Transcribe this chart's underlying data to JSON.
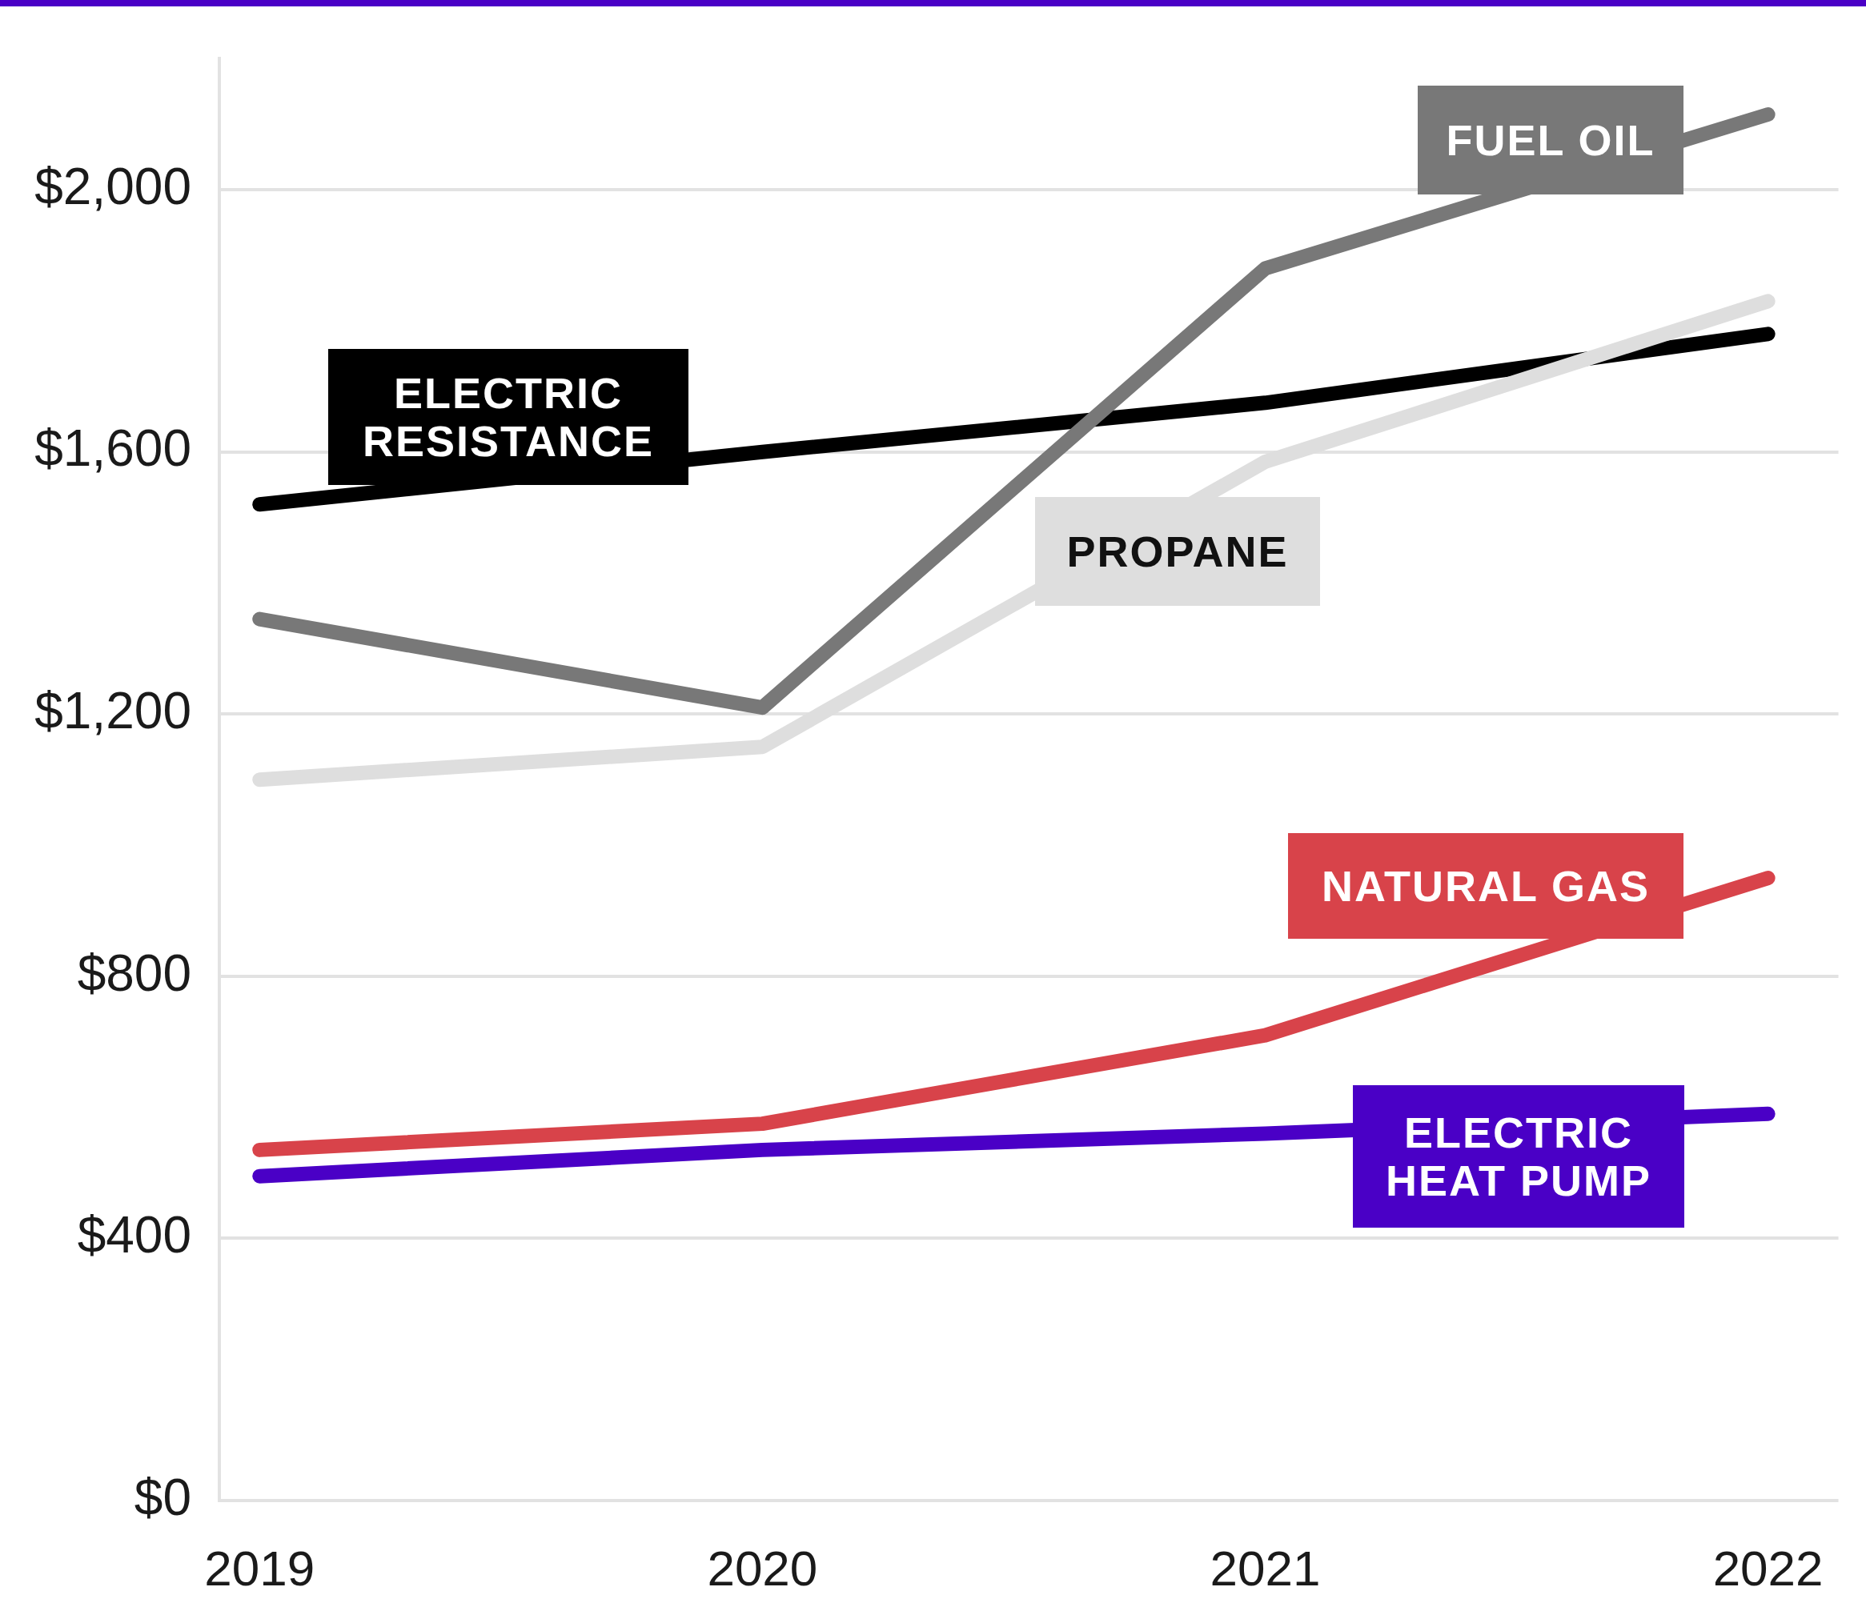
{
  "chart_data": {
    "type": "line",
    "x": [
      2019,
      2020,
      2021,
      2022
    ],
    "xlim": [
      2018.92,
      2022.14
    ],
    "xticks": [
      2019,
      2020,
      2021,
      2022
    ],
    "ylim": [
      0,
      2200
    ],
    "yticks": [
      {
        "value": 0,
        "label": "$0"
      },
      {
        "value": 400,
        "label": "$400"
      },
      {
        "value": 800,
        "label": "$800"
      },
      {
        "value": 1200,
        "label": "$1,200"
      },
      {
        "value": 1600,
        "label": "$1,600"
      },
      {
        "value": 2000,
        "label": "$2,000"
      }
    ],
    "grid": "y",
    "legend": false,
    "marker": "none",
    "line_style": "solid",
    "series": [
      {
        "name": "FUEL OIL",
        "color": "#787878",
        "values": [
          1345,
          1210,
          1880,
          2115
        ]
      },
      {
        "name": "PROPANE",
        "color": "#dedede",
        "values": [
          1100,
          1150,
          1585,
          1830
        ]
      },
      {
        "name": "ELECTRIC RESISTANCE",
        "color": "#000000",
        "values": [
          1520,
          1600,
          1675,
          1780
        ]
      },
      {
        "name": "NATURAL GAS",
        "color": "#d8434a",
        "values": [
          535,
          575,
          710,
          950
        ]
      },
      {
        "name": "ELECTRIC HEAT PUMP",
        "color": "#4a00c6",
        "values": [
          495,
          535,
          560,
          590
        ]
      }
    ]
  }
}
